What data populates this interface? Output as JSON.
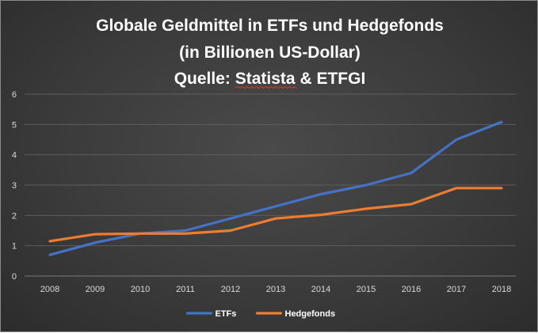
{
  "chart_data": {
    "type": "line",
    "title_lines": [
      "Globale Geldmittel in ETFs und Hedgefonds",
      "(in Billionen US-Dollar)"
    ],
    "source_prefix": "Quelle: ",
    "source_name": "Statista",
    "source_suffix": " & ETFGI",
    "categories": [
      "2008",
      "2009",
      "2010",
      "2011",
      "2012",
      "2013",
      "2014",
      "2015",
      "2016",
      "2017",
      "2018"
    ],
    "yticks": [
      "0",
      "1",
      "2",
      "3",
      "4",
      "5",
      "6"
    ],
    "ylim": [
      0,
      6
    ],
    "grid": true,
    "legend_position": "bottom",
    "series": [
      {
        "name": "ETFs",
        "color": "#4472C4",
        "values": [
          0.7,
          1.1,
          1.4,
          1.5,
          1.9,
          2.3,
          2.7,
          3.0,
          3.4,
          4.5,
          5.08
        ]
      },
      {
        "name": "Hedgefonds",
        "color": "#ED7D31",
        "values": [
          1.15,
          1.38,
          1.4,
          1.4,
          1.5,
          1.9,
          2.02,
          2.22,
          2.37,
          2.9,
          2.9
        ]
      }
    ]
  }
}
